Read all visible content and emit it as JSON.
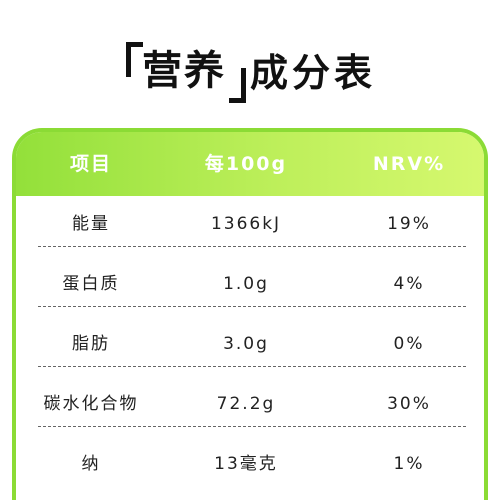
{
  "title": {
    "highlight": "营养",
    "rest": "成分表"
  },
  "table": {
    "headers": [
      "项目",
      "每100g",
      "NRV%"
    ],
    "rows": [
      {
        "item": "能量",
        "per100g": "1366kJ",
        "nrv": "19%"
      },
      {
        "item": "蛋白质",
        "per100g": "1.0g",
        "nrv": "4%"
      },
      {
        "item": "脂肪",
        "per100g": "3.0g",
        "nrv": "0%"
      },
      {
        "item": "碳水化合物",
        "per100g": "72.2g",
        "nrv": "30%"
      },
      {
        "item": "纳",
        "per100g": "13毫克",
        "nrv": "1%"
      }
    ]
  },
  "colors": {
    "accent_green": "#8bdb35",
    "header_gradient_end": "#d6f86f"
  }
}
